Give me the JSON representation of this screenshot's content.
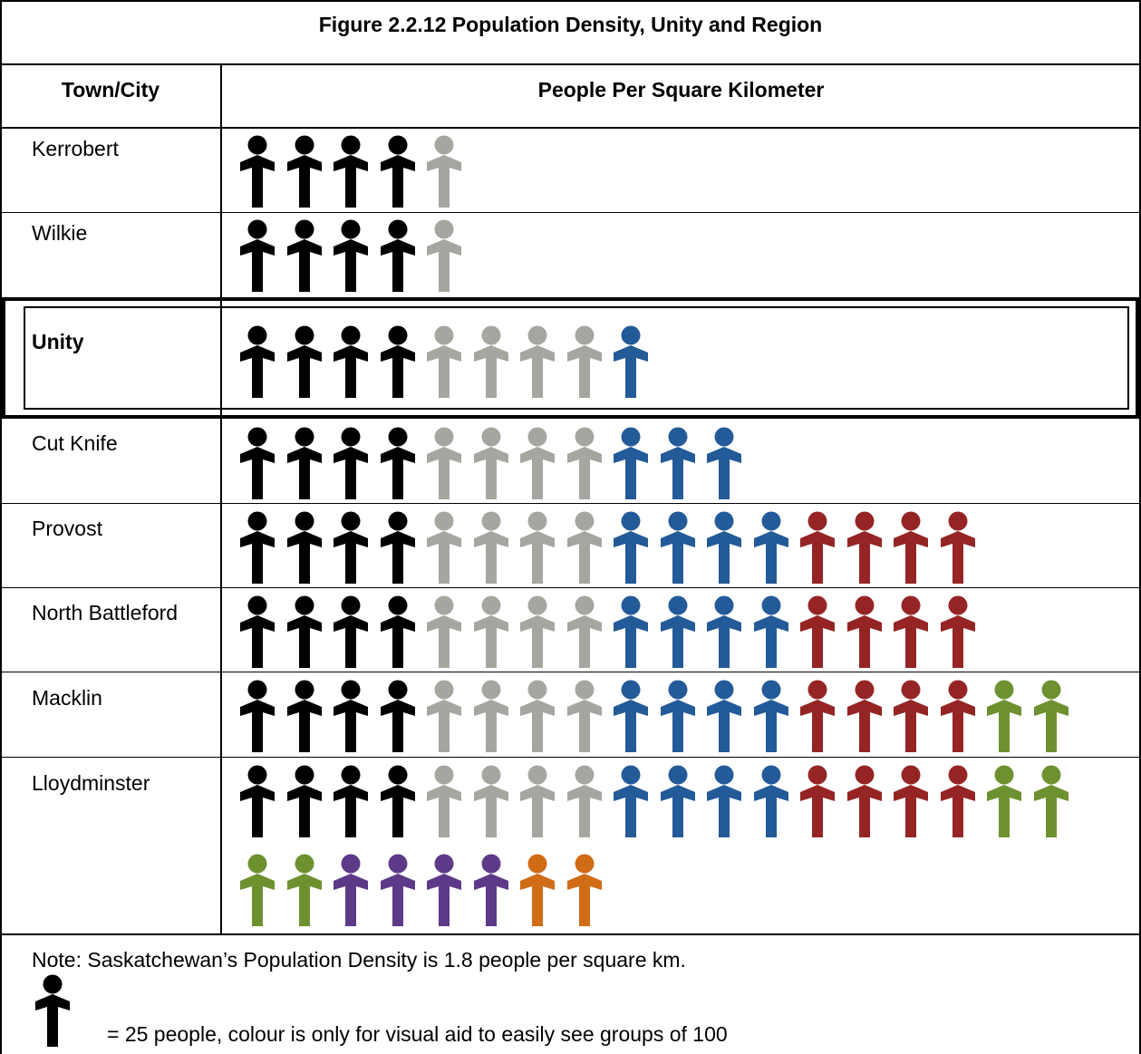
{
  "title": "Figure 2.2.12 Population Density, Unity and Region",
  "headers": {
    "town": "Town/City",
    "density": "People Per Square Kilometer"
  },
  "colors": {
    "black": "#000000",
    "grey": "#a6a6a0",
    "blue": "#235a98",
    "red": "#952525",
    "green": "#6e9130",
    "purple": "#5d3a88",
    "orange": "#d06b16"
  },
  "chart_data": {
    "type": "pictogram",
    "unit_people_per_icon": 25,
    "group_size": 100,
    "rows": [
      {
        "name": "Kerrobert",
        "icons": [
          "black",
          "black",
          "black",
          "black",
          "grey"
        ],
        "highlight": false
      },
      {
        "name": "Wilkie",
        "icons": [
          "black",
          "black",
          "black",
          "black",
          "grey"
        ],
        "highlight": false
      },
      {
        "name": "Unity",
        "icons": [
          "black",
          "black",
          "black",
          "black",
          "grey",
          "grey",
          "grey",
          "grey",
          "blue"
        ],
        "highlight": true
      },
      {
        "name": "Cut Knife",
        "icons": [
          "black",
          "black",
          "black",
          "black",
          "grey",
          "grey",
          "grey",
          "grey",
          "blue",
          "blue",
          "blue"
        ],
        "highlight": false
      },
      {
        "name": "Provost",
        "icons": [
          "black",
          "black",
          "black",
          "black",
          "grey",
          "grey",
          "grey",
          "grey",
          "blue",
          "blue",
          "blue",
          "blue",
          "red",
          "red",
          "red",
          "red"
        ],
        "highlight": false
      },
      {
        "name": "North Battleford",
        "icons": [
          "black",
          "black",
          "black",
          "black",
          "grey",
          "grey",
          "grey",
          "grey",
          "blue",
          "blue",
          "blue",
          "blue",
          "red",
          "red",
          "red",
          "red"
        ],
        "highlight": false
      },
      {
        "name": "Macklin",
        "icons": [
          "black",
          "black",
          "black",
          "black",
          "grey",
          "grey",
          "grey",
          "grey",
          "blue",
          "blue",
          "blue",
          "blue",
          "red",
          "red",
          "red",
          "red",
          "green",
          "green"
        ],
        "highlight": false
      },
      {
        "name": "Lloydminster",
        "icons": [
          "black",
          "black",
          "black",
          "black",
          "grey",
          "grey",
          "grey",
          "grey",
          "blue",
          "blue",
          "blue",
          "blue",
          "red",
          "red",
          "red",
          "red",
          "green",
          "green",
          "green",
          "green",
          "purple",
          "purple",
          "purple",
          "purple",
          "orange",
          "orange"
        ],
        "highlight": false
      }
    ]
  },
  "note": "Note: Saskatchewan’s Population Density is 1.8 people per square km.",
  "legend": {
    "icon_color": "black",
    "text": "= 25 people, colour is only for visual aid to easily see groups of 100"
  }
}
